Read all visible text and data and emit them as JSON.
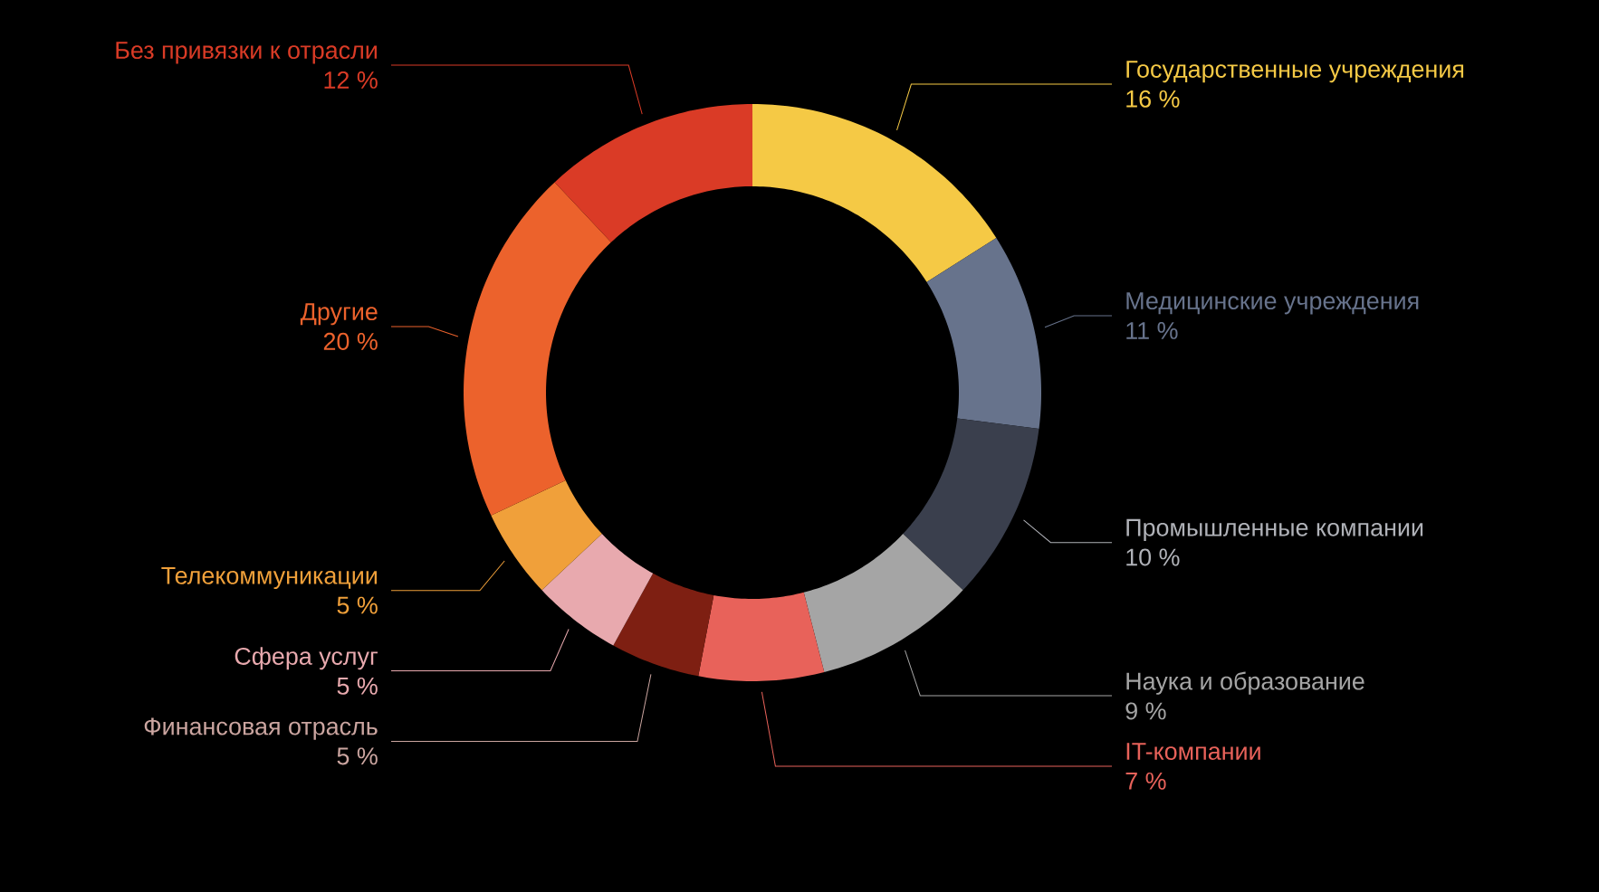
{
  "chart_data": {
    "type": "donut",
    "categories": [
      "Государственные учреждения",
      "Медицинские учреждения",
      "Промышленные компании",
      "Наука и образование",
      "IT-компании",
      "Финансовая отрасль",
      "Сфера услуг",
      "Телекоммуникации",
      "Другие",
      "Без привязки к отрасли"
    ],
    "values": [
      16,
      11,
      10,
      9,
      7,
      5,
      5,
      5,
      20,
      12
    ],
    "value_labels": [
      "16 %",
      "11 %",
      "10 %",
      "9 %",
      "7 %",
      "5 %",
      "5 %",
      "5 %",
      "20 %",
      "12 %"
    ],
    "colors": [
      "#f5c945",
      "#67738c",
      "#3a3f4d",
      "#a5a5a5",
      "#e8625a",
      "#7e1f12",
      "#e8a9ae",
      "#f0a03a",
      "#ec622c",
      "#da3b26"
    ]
  }
}
